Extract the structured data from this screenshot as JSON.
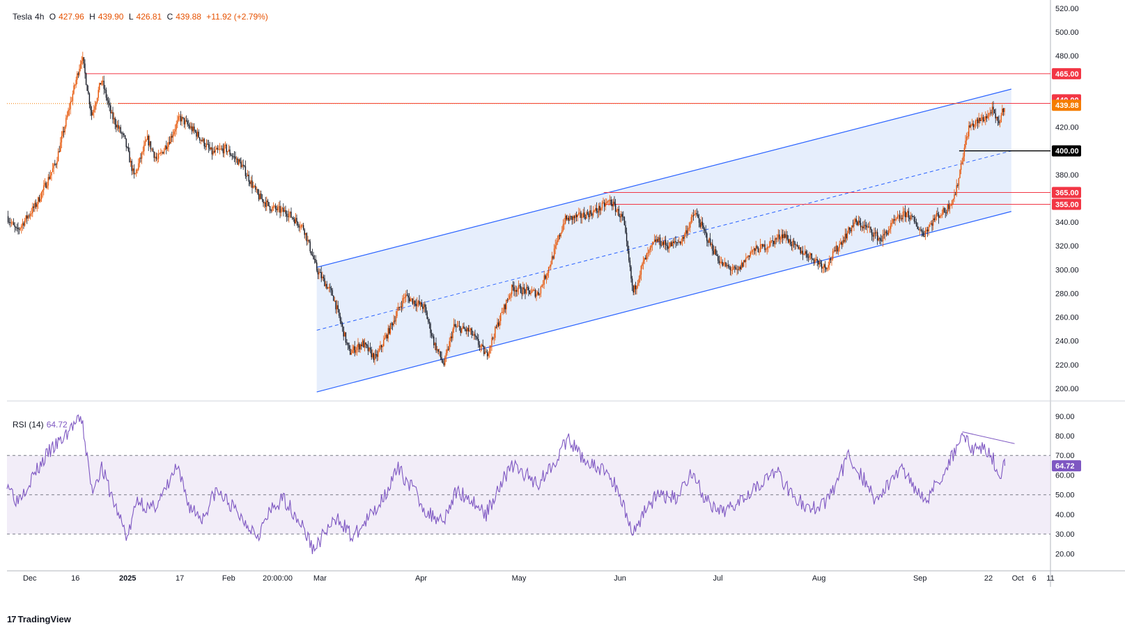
{
  "header": {
    "symbol": "Tesla",
    "interval": "4h",
    "open_label": "O",
    "open": "427.96",
    "high_label": "H",
    "high": "439.90",
    "low_label": "L",
    "low": "426.81",
    "close_label": "C",
    "close": "439.88",
    "change": "+11.92 (+2.79%)"
  },
  "rsi_header": {
    "label": "RSI (14)",
    "value": "64.72"
  },
  "brand": {
    "logo": "17",
    "name": "TradingView",
    "icon": "tradingview-logo-icon"
  },
  "colors": {
    "up": "#e65100",
    "down": "#131722",
    "resistance": "#f23645",
    "channel": "#2962ff",
    "channel_fill": "#dbe7fb",
    "rsi": "#7e57c2",
    "rsi_band": "#ede7f6",
    "black_level": "#000000",
    "price_tag": "#f57c00"
  },
  "chart_data": [
    {
      "type": "candlestick",
      "y_axis": {
        "range": [
          190,
          520
        ],
        "ticks": [
          "200.00",
          "220.00",
          "240.00",
          "260.00",
          "280.00",
          "300.00",
          "320.00",
          "340.00",
          "380.00",
          "400.00",
          "420.00",
          "480.00",
          "500.00",
          "520.00"
        ],
        "tick_values": [
          200,
          220,
          240,
          260,
          280,
          300,
          320,
          340,
          380,
          400,
          420,
          480,
          500,
          520
        ]
      },
      "x_axis": {
        "labels": [
          "Dec",
          "16",
          "2025",
          "17",
          "Feb",
          "20:00:00",
          "Mar",
          "Apr",
          "May",
          "Jun",
          "Jul",
          "Aug",
          "Sep",
          "22",
          "Oct",
          "6",
          "11"
        ],
        "label_dates": [
          "2024-12-02",
          "2024-12-16",
          "2025-01-01",
          "2025-01-17",
          "2025-02-01",
          "2025-02-16",
          "2025-03-01",
          "2025-04-01",
          "2025-05-01",
          "2025-06-01",
          "2025-07-01",
          "2025-08-01",
          "2025-09-01",
          "2025-09-22",
          "2025-10-01",
          "2025-10-06",
          "2025-10-11"
        ],
        "range": [
          "2024-11-25",
          "2025-10-11"
        ]
      },
      "price_path": [
        [
          "2024-11-25",
          345
        ],
        [
          "2024-11-28",
          332
        ],
        [
          "2024-12-04",
          355
        ],
        [
          "2024-12-10",
          390
        ],
        [
          "2024-12-14",
          435
        ],
        [
          "2024-12-18",
          480
        ],
        [
          "2024-12-21",
          430
        ],
        [
          "2024-12-24",
          460
        ],
        [
          "2024-12-27",
          430
        ],
        [
          "2024-12-31",
          410
        ],
        [
          "2025-01-03",
          378
        ],
        [
          "2025-01-07",
          410
        ],
        [
          "2025-01-10",
          392
        ],
        [
          "2025-01-14",
          410
        ],
        [
          "2025-01-17",
          428
        ],
        [
          "2025-01-22",
          415
        ],
        [
          "2025-01-27",
          398
        ],
        [
          "2025-01-31",
          402
        ],
        [
          "2025-02-05",
          388
        ],
        [
          "2025-02-10",
          362
        ],
        [
          "2025-02-14",
          352
        ],
        [
          "2025-02-19",
          348
        ],
        [
          "2025-02-24",
          335
        ],
        [
          "2025-02-28",
          300
        ],
        [
          "2025-03-05",
          278
        ],
        [
          "2025-03-10",
          230
        ],
        [
          "2025-03-14",
          238
        ],
        [
          "2025-03-18",
          225
        ],
        [
          "2025-03-22",
          248
        ],
        [
          "2025-03-27",
          278
        ],
        [
          "2025-04-02",
          268
        ],
        [
          "2025-04-05",
          238
        ],
        [
          "2025-04-08",
          220
        ],
        [
          "2025-04-11",
          252
        ],
        [
          "2025-04-16",
          248
        ],
        [
          "2025-04-21",
          228
        ],
        [
          "2025-04-25",
          258
        ],
        [
          "2025-04-29",
          285
        ],
        [
          "2025-05-03",
          282
        ],
        [
          "2025-05-07",
          280
        ],
        [
          "2025-05-11",
          308
        ],
        [
          "2025-05-15",
          342
        ],
        [
          "2025-05-20",
          345
        ],
        [
          "2025-05-25",
          350
        ],
        [
          "2025-05-29",
          358
        ],
        [
          "2025-06-02",
          342
        ],
        [
          "2025-06-05",
          280
        ],
        [
          "2025-06-08",
          305
        ],
        [
          "2025-06-12",
          325
        ],
        [
          "2025-06-16",
          320
        ],
        [
          "2025-06-20",
          325
        ],
        [
          "2025-06-24",
          348
        ],
        [
          "2025-06-28",
          325
        ],
        [
          "2025-07-02",
          305
        ],
        [
          "2025-07-07",
          298
        ],
        [
          "2025-07-11",
          315
        ],
        [
          "2025-07-16",
          320
        ],
        [
          "2025-07-21",
          330
        ],
        [
          "2025-07-25",
          318
        ],
        [
          "2025-07-29",
          312
        ],
        [
          "2025-08-03",
          302
        ],
        [
          "2025-08-07",
          320
        ],
        [
          "2025-08-12",
          340
        ],
        [
          "2025-08-16",
          335
        ],
        [
          "2025-08-20",
          325
        ],
        [
          "2025-08-24",
          340
        ],
        [
          "2025-08-28",
          348
        ],
        [
          "2025-09-02",
          330
        ],
        [
          "2025-09-06",
          345
        ],
        [
          "2025-09-09",
          350
        ],
        [
          "2025-09-12",
          365
        ],
        [
          "2025-09-14",
          395
        ],
        [
          "2025-09-16",
          420
        ],
        [
          "2025-09-19",
          425
        ],
        [
          "2025-09-22",
          430
        ],
        [
          "2025-09-23",
          435
        ],
        [
          "2025-09-25",
          422
        ],
        [
          "2025-09-27",
          439.88
        ]
      ],
      "channel": {
        "upper": [
          [
            "2025-02-28",
            302
          ],
          [
            "2025-09-29",
            452
          ]
        ],
        "lower": [
          [
            "2025-02-28",
            197
          ],
          [
            "2025-09-29",
            349
          ]
        ],
        "midline": [
          [
            "2025-02-28",
            249
          ],
          [
            "2025-09-29",
            400
          ]
        ]
      },
      "horizontal_levels": [
        {
          "value": 465,
          "label": "465.00",
          "color": "#f23645",
          "from": "2024-12-19"
        },
        {
          "value": 440,
          "label": "440.00",
          "color": "#f23645",
          "from": "2024-12-29"
        },
        {
          "value": 365,
          "label": "365.00",
          "color": "#f23645",
          "from": "2025-05-27"
        },
        {
          "value": 355,
          "label": "355.00",
          "color": "#f23645",
          "from": "2025-05-27"
        },
        {
          "value": 400,
          "label": "400.00",
          "color": "#000000",
          "from": "2025-09-13"
        }
      ],
      "last_price": {
        "value": 439.88,
        "label": "439.88",
        "color": "#f57c00"
      }
    },
    {
      "type": "line",
      "name": "RSI (14)",
      "y_axis": {
        "range": [
          12,
          97
        ],
        "ticks": [
          "20.00",
          "30.00",
          "40.00",
          "50.00",
          "60.00",
          "70.00",
          "80.00",
          "90.00"
        ],
        "tick_values": [
          20,
          30,
          40,
          50,
          60,
          70,
          80,
          90
        ]
      },
      "levels": [
        30,
        50,
        70
      ],
      "last_value": {
        "value": 64.72,
        "label": "64.72"
      },
      "rsi_path": [
        [
          "2024-11-25",
          57
        ],
        [
          "2024-11-28",
          47
        ],
        [
          "2024-12-04",
          62
        ],
        [
          "2024-12-08",
          72
        ],
        [
          "2024-12-12",
          78
        ],
        [
          "2024-12-15",
          85
        ],
        [
          "2024-12-18",
          88
        ],
        [
          "2024-12-21",
          52
        ],
        [
          "2024-12-24",
          64
        ],
        [
          "2024-12-28",
          45
        ],
        [
          "2025-01-01",
          28
        ],
        [
          "2025-01-04",
          48
        ],
        [
          "2025-01-08",
          42
        ],
        [
          "2025-01-12",
          50
        ],
        [
          "2025-01-16",
          64
        ],
        [
          "2025-01-20",
          44
        ],
        [
          "2025-01-24",
          38
        ],
        [
          "2025-01-28",
          52
        ],
        [
          "2025-02-01",
          46
        ],
        [
          "2025-02-05",
          38
        ],
        [
          "2025-02-10",
          30
        ],
        [
          "2025-02-14",
          42
        ],
        [
          "2025-02-18",
          48
        ],
        [
          "2025-02-23",
          36
        ],
        [
          "2025-02-27",
          22
        ],
        [
          "2025-03-03",
          32
        ],
        [
          "2025-03-07",
          38
        ],
        [
          "2025-03-11",
          28
        ],
        [
          "2025-03-15",
          36
        ],
        [
          "2025-03-19",
          45
        ],
        [
          "2025-03-25",
          63
        ],
        [
          "2025-03-30",
          52
        ],
        [
          "2025-04-03",
          40
        ],
        [
          "2025-04-08",
          38
        ],
        [
          "2025-04-12",
          52
        ],
        [
          "2025-04-16",
          48
        ],
        [
          "2025-04-21",
          40
        ],
        [
          "2025-04-25",
          55
        ],
        [
          "2025-04-29",
          65
        ],
        [
          "2025-05-03",
          60
        ],
        [
          "2025-05-07",
          56
        ],
        [
          "2025-05-11",
          65
        ],
        [
          "2025-05-16",
          78
        ],
        [
          "2025-05-20",
          70
        ],
        [
          "2025-05-24",
          64
        ],
        [
          "2025-05-28",
          62
        ],
        [
          "2025-06-01",
          50
        ],
        [
          "2025-06-05",
          30
        ],
        [
          "2025-06-09",
          44
        ],
        [
          "2025-06-13",
          50
        ],
        [
          "2025-06-18",
          48
        ],
        [
          "2025-06-23",
          62
        ],
        [
          "2025-06-27",
          48
        ],
        [
          "2025-07-01",
          40
        ],
        [
          "2025-07-05",
          44
        ],
        [
          "2025-07-09",
          50
        ],
        [
          "2025-07-14",
          56
        ],
        [
          "2025-07-19",
          62
        ],
        [
          "2025-07-24",
          50
        ],
        [
          "2025-07-29",
          42
        ],
        [
          "2025-08-03",
          46
        ],
        [
          "2025-08-07",
          58
        ],
        [
          "2025-08-10",
          70
        ],
        [
          "2025-08-14",
          60
        ],
        [
          "2025-08-18",
          48
        ],
        [
          "2025-08-22",
          54
        ],
        [
          "2025-08-26",
          64
        ],
        [
          "2025-08-30",
          55
        ],
        [
          "2025-09-03",
          48
        ],
        [
          "2025-09-07",
          58
        ],
        [
          "2025-09-11",
          70
        ],
        [
          "2025-09-14",
          82
        ],
        [
          "2025-09-17",
          72
        ],
        [
          "2025-09-20",
          75
        ],
        [
          "2025-09-23",
          70
        ],
        [
          "2025-09-25",
          60
        ],
        [
          "2025-09-27",
          64.72
        ]
      ],
      "divergence_line": [
        [
          "2025-09-14",
          82
        ],
        [
          "2025-09-30",
          76
        ]
      ]
    }
  ]
}
